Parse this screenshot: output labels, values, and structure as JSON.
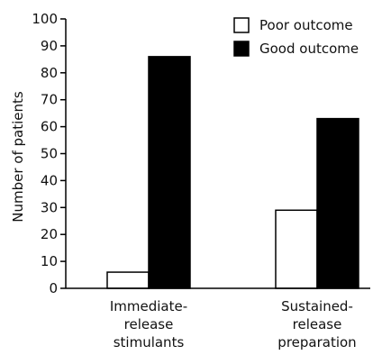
{
  "chart_data": {
    "type": "bar",
    "title": "",
    "xlabel": "",
    "ylabel": "Number of patients",
    "ylim": [
      0,
      100
    ],
    "yticks": [
      0,
      10,
      20,
      30,
      40,
      50,
      60,
      70,
      80,
      90,
      100
    ],
    "categories": [
      [
        "Immediate-",
        "release",
        "stimulants"
      ],
      [
        "Sustained-",
        "release",
        "preparation"
      ]
    ],
    "series": [
      {
        "name": "Poor outcome",
        "color": "#ffffff",
        "values": [
          6,
          29
        ]
      },
      {
        "name": "Good outcome",
        "color": "#000000",
        "values": [
          86,
          63
        ]
      }
    ],
    "legend": "top-right",
    "grid": false
  }
}
